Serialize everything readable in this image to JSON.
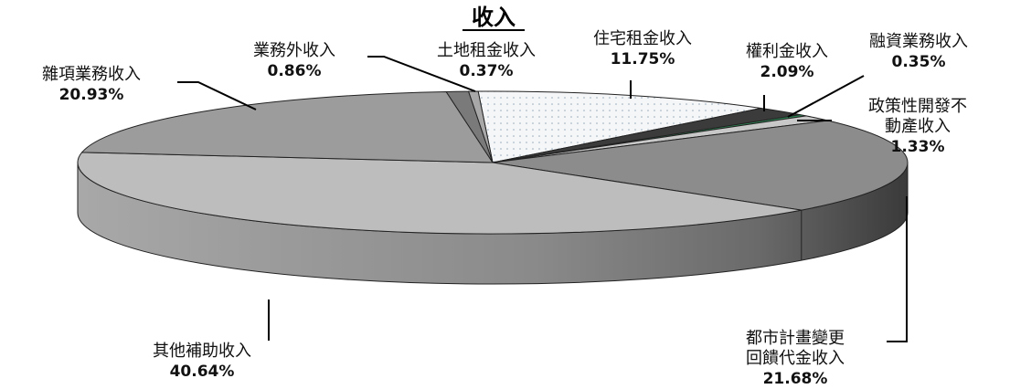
{
  "chart_data": {
    "type": "pie",
    "title": "收入",
    "slices": [
      {
        "label": "住宅租金收入",
        "value": 11.75,
        "display": "11.75%",
        "color": "#f2f4f6"
      },
      {
        "label": "權利金收入",
        "value": 2.09,
        "display": "2.09%",
        "color": "#3b3b3b"
      },
      {
        "label": "融資業務收入",
        "value": 0.35,
        "display": "0.35%",
        "color": "#2e8b57"
      },
      {
        "label": "政策性開發不動產收入",
        "label_lines": [
          "政策性開發不",
          "動產收入"
        ],
        "value": 1.33,
        "display": "1.33%",
        "color": "#c8c8c8"
      },
      {
        "label": "都市計畫變更回饋代金收入",
        "label_lines": [
          "都市計畫變更",
          "回饋代金收入"
        ],
        "value": 21.68,
        "display": "21.68%",
        "color": "#8c8c8c"
      },
      {
        "label": "其他補助收入",
        "value": 40.64,
        "display": "40.64%",
        "color": "#bdbdbd"
      },
      {
        "label": "雜項業務收入",
        "value": 20.93,
        "display": "20.93%",
        "color": "#9c9c9c"
      },
      {
        "label": "業務外收入",
        "value": 0.86,
        "display": "0.86%",
        "color": "#7a7a7a"
      },
      {
        "label": "土地租金收入",
        "value": 0.37,
        "display": "0.37%",
        "color": "#a8a8a8"
      }
    ],
    "legend": "none"
  }
}
